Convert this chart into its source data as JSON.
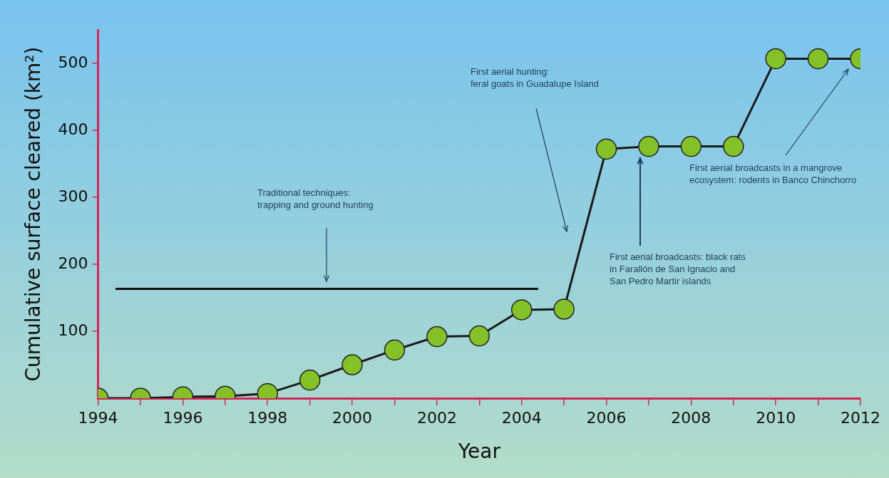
{
  "chart_data": {
    "type": "line",
    "xlabel": "Year",
    "ylabel": "Cumulative surface cleared (km²)",
    "x": [
      1994,
      1995,
      1996,
      1997,
      1998,
      1999,
      2000,
      2001,
      2002,
      2003,
      2004,
      2005,
      2006,
      2007,
      2008,
      2009,
      2010,
      2011,
      2012
    ],
    "series": [
      {
        "color": "#84c128",
        "values": [
          0,
          0,
          2,
          3,
          7,
          27,
          50,
          72,
          92,
          93,
          132,
          133,
          372,
          376,
          376,
          376,
          507,
          507,
          507
        ]
      }
    ],
    "xlim": [
      1994,
      2012
    ],
    "xticks": [
      1994,
      {
        "value": 1995,
        "label": null
      },
      1996,
      {
        "value": 1997,
        "label": null
      },
      1998,
      {
        "value": 1999,
        "label": null
      },
      2000,
      {
        "value": 2001,
        "label": null
      },
      2002,
      {
        "value": 2003,
        "label": null
      },
      2004,
      {
        "value": 2005,
        "label": null
      },
      2006,
      {
        "value": 2007,
        "label": null
      },
      2008,
      {
        "value": 2009,
        "label": null
      },
      2010,
      {
        "value": 2011,
        "label": null
      },
      2012
    ],
    "ylim": [
      0,
      550
    ],
    "yticks": [
      100,
      200,
      300,
      400,
      500
    ],
    "grid": false,
    "legend": false,
    "marker": "circle",
    "line_style": "solid",
    "annotations": [
      "Traditional techniques:\ntrapping and ground hunting",
      "First aerial hunting:\nferal goats in Guadalupe Island",
      "First aerial broadcasts: black rats\nin Farallón de San Ignacio and\nSan Pedro Martir islands",
      "First aerial broadcasts in a mangrove\necosystem: rodents in Banco Chinchorro"
    ]
  }
}
